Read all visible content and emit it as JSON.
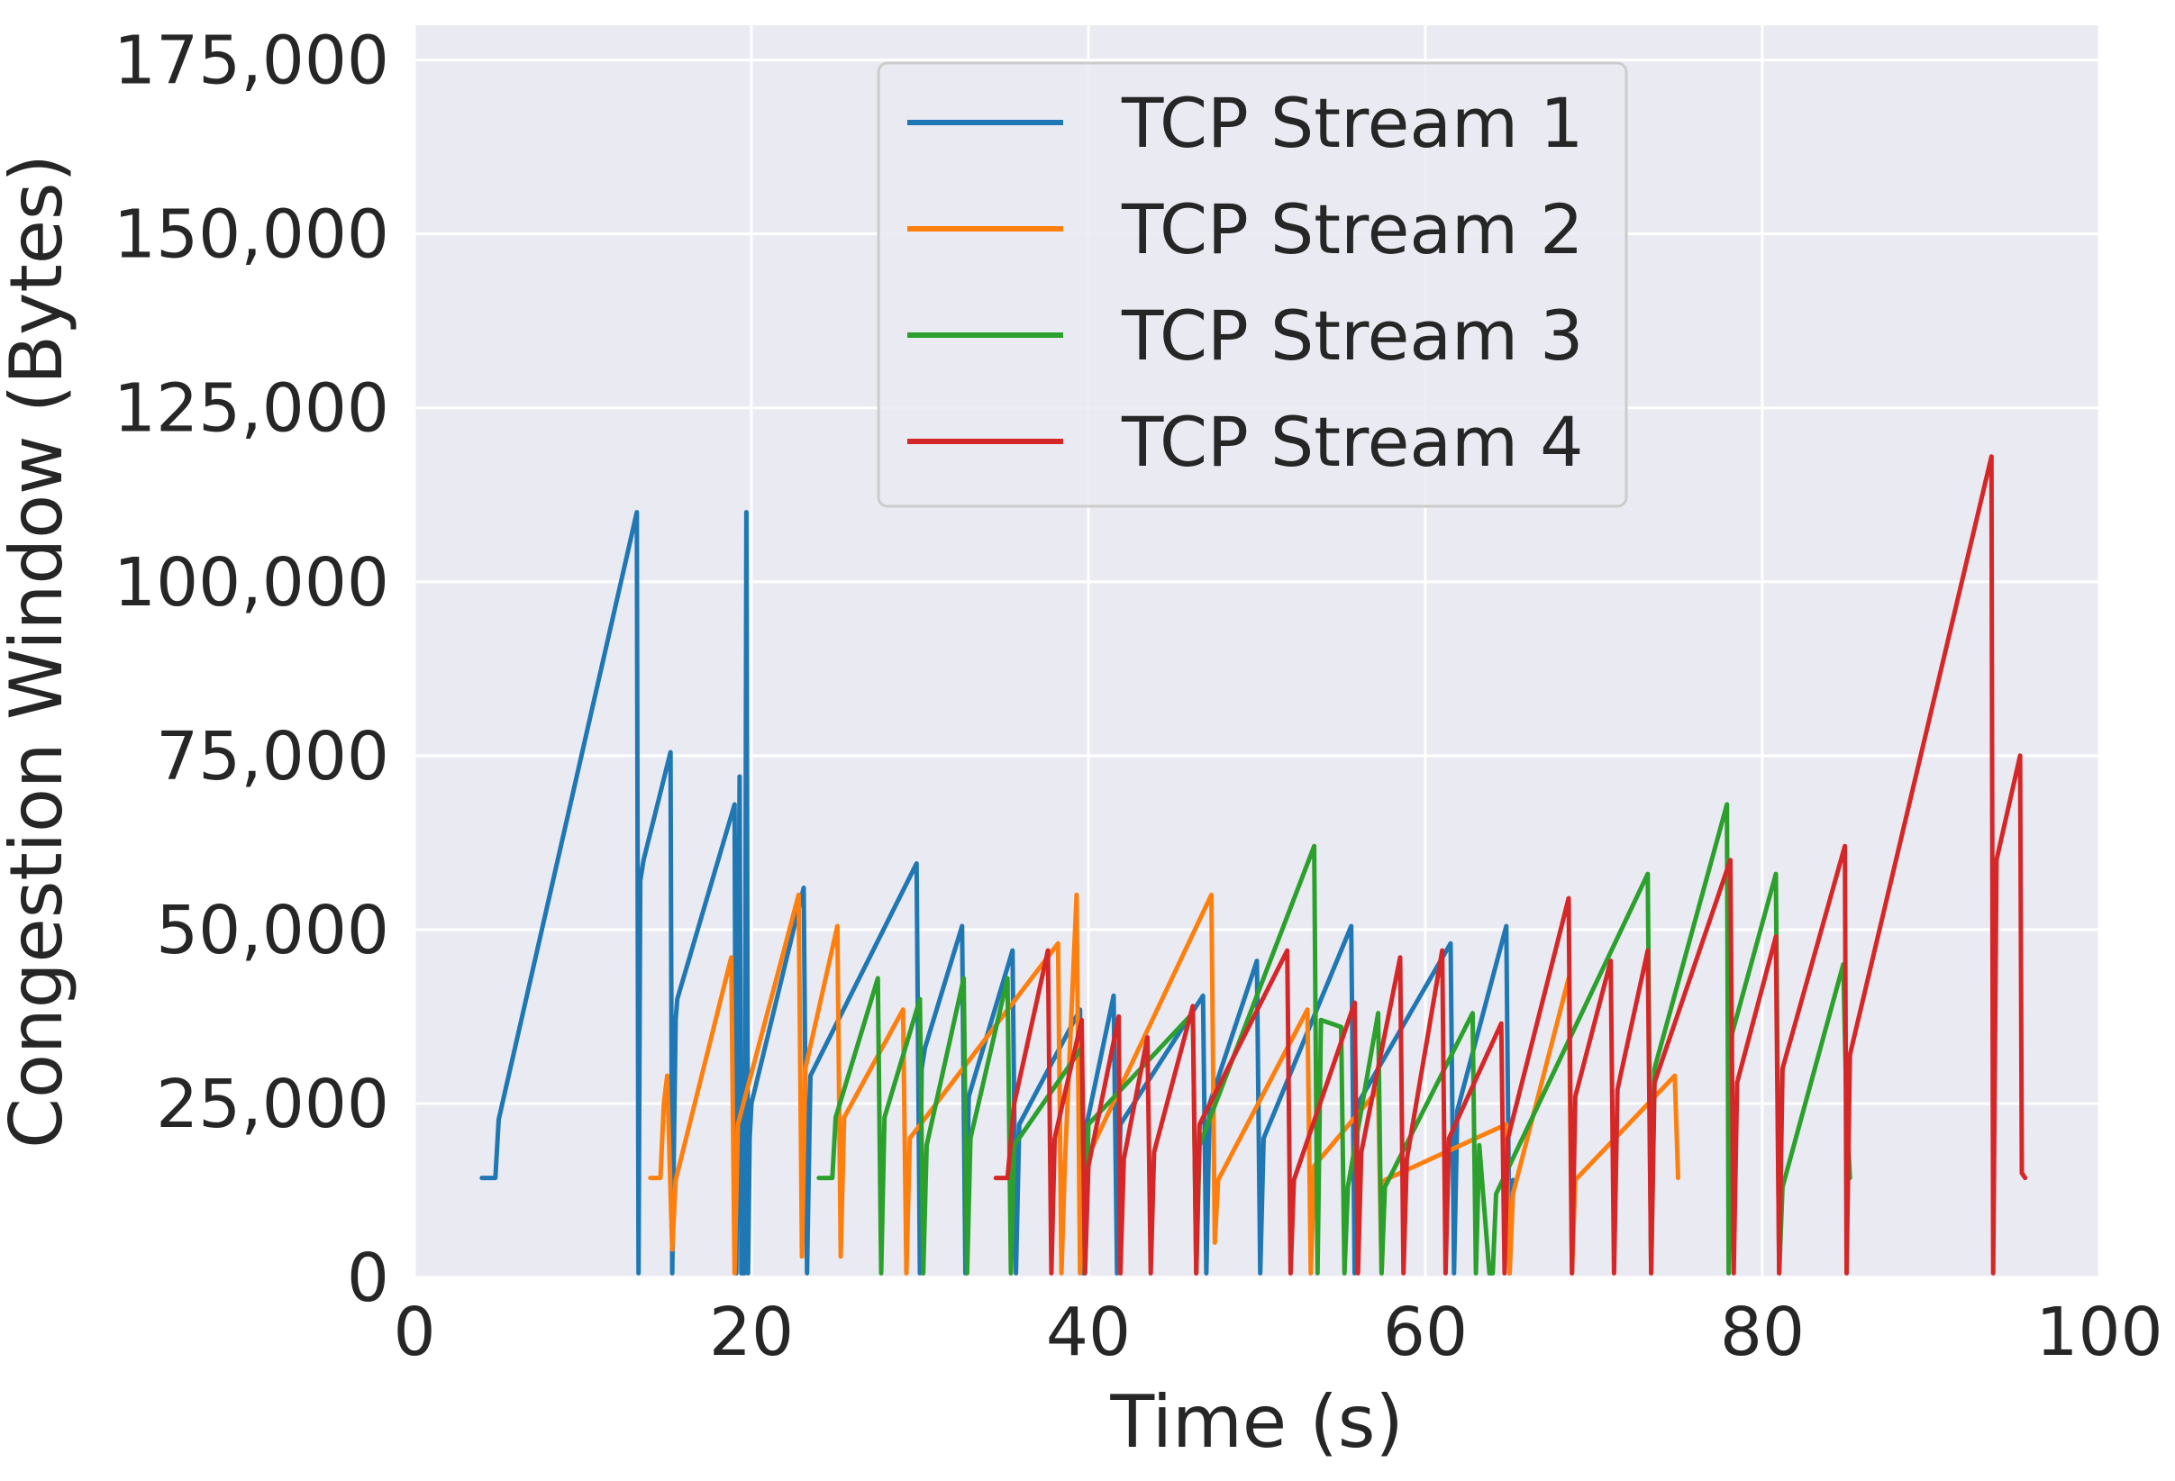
{
  "chart_data": {
    "type": "line",
    "title": "",
    "xlabel": "Time (s)",
    "ylabel": "Congestion Window (Bytes)",
    "xlim": [
      0,
      100
    ],
    "ylim": [
      0,
      180000
    ],
    "x_ticks": [
      0,
      20,
      40,
      60,
      80,
      100
    ],
    "x_tick_labels": [
      "0",
      "20",
      "40",
      "60",
      "80",
      "100"
    ],
    "y_ticks": [
      0,
      25000,
      50000,
      75000,
      100000,
      125000,
      150000,
      175000
    ],
    "y_tick_labels": [
      "0",
      "25,000",
      "50,000",
      "75,000",
      "100,000",
      "125,000",
      "150,000",
      "175,000"
    ],
    "grid": true,
    "background": "#eaeaf2",
    "legend_position": "top-center",
    "series": [
      {
        "name": "TCP Stream 1",
        "color": "#1f77b4",
        "x": [
          4.0,
          4.8,
          5.0,
          13.2,
          13.3,
          13.4,
          13.6,
          15.2,
          15.3,
          15.5,
          15.6,
          19.0,
          19.1,
          19.3,
          19.4,
          19.6,
          19.7,
          19.8,
          19.9,
          20.0,
          23.1,
          23.3,
          23.5,
          29.8,
          30.0,
          30.1,
          30.3,
          32.5,
          32.7,
          32.9,
          35.5,
          35.7,
          35.9,
          39.5,
          39.7,
          39.9,
          41.5,
          41.7,
          41.9,
          46.8,
          47.0,
          47.2,
          50.0,
          50.2,
          50.4,
          55.6,
          55.8,
          56.0,
          61.5,
          61.7,
          61.9,
          64.8,
          65.0,
          65.2
        ],
        "y": [
          14300,
          14300,
          22700,
          110000,
          600,
          57000,
          60000,
          75500,
          600,
          37000,
          40000,
          68000,
          600,
          72000,
          600,
          600,
          110000,
          600,
          20000,
          25000,
          56000,
          600,
          29000,
          59500,
          600,
          30000,
          33000,
          50500,
          600,
          26000,
          47000,
          600,
          22000,
          38500,
          600,
          22000,
          40500,
          600,
          22000,
          40500,
          600,
          25000,
          45500,
          600,
          20000,
          50500,
          600,
          25000,
          48000,
          600,
          24000,
          50500,
          600,
          14000
        ]
      },
      {
        "name": "TCP Stream 2",
        "color": "#ff7f0e",
        "x": [
          14.0,
          14.6,
          14.8,
          15.0,
          15.3,
          15.5,
          18.8,
          19.0,
          19.2,
          22.8,
          23.0,
          23.2,
          25.1,
          25.3,
          25.5,
          29.0,
          29.2,
          29.4,
          38.2,
          38.4,
          38.6,
          39.3,
          39.5,
          39.7,
          47.3,
          47.5,
          47.7,
          53.0,
          53.2,
          53.4,
          57.2,
          57.4,
          57.6,
          64.8,
          65.0,
          65.2,
          68.5,
          68.7,
          68.9,
          74.8,
          75.0
        ],
        "y": [
          14300,
          14300,
          25000,
          29000,
          4000,
          14000,
          46000,
          600,
          22000,
          55000,
          3000,
          30000,
          50500,
          3000,
          23000,
          38500,
          600,
          20000,
          48000,
          600,
          16000,
          55000,
          600,
          16000,
          55000,
          5000,
          14000,
          38500,
          600,
          16000,
          27000,
          600,
          14000,
          22000,
          600,
          12000,
          43000,
          600,
          14000,
          29000,
          14300
        ]
      },
      {
        "name": "TCP Stream 3",
        "color": "#2ca02c",
        "x": [
          24.0,
          24.8,
          25.0,
          27.5,
          27.7,
          27.9,
          30.0,
          30.2,
          30.4,
          32.6,
          32.8,
          33.0,
          35.2,
          35.4,
          35.6,
          39.6,
          39.8,
          40.0,
          46.2,
          46.4,
          46.6,
          53.4,
          53.6,
          53.8,
          55.0,
          55.2,
          55.4,
          57.2,
          57.4,
          57.6,
          62.8,
          63.0,
          63.2,
          63.8,
          64.0,
          64.2,
          73.2,
          73.4,
          73.6,
          77.9,
          78.0,
          78.2,
          80.8,
          81.0,
          81.2,
          84.8,
          85.0,
          85.2
        ],
        "y": [
          14300,
          14300,
          23000,
          43000,
          600,
          23000,
          40000,
          600,
          19000,
          43000,
          600,
          20000,
          43000,
          600,
          19000,
          33000,
          600,
          22000,
          38000,
          600,
          19000,
          62000,
          600,
          37000,
          36000,
          600,
          13000,
          38000,
          600,
          13000,
          38000,
          600,
          19000,
          600,
          600,
          12000,
          58000,
          600,
          30000,
          68000,
          600,
          35000,
          58000,
          600,
          13000,
          45000,
          24000,
          14300
        ]
      },
      {
        "name": "TCP Stream 4",
        "color": "#d62728",
        "x": [
          34.5,
          35.2,
          35.6,
          37.6,
          37.8,
          38.0,
          39.6,
          39.8,
          40.0,
          41.8,
          41.9,
          42.1,
          43.5,
          43.7,
          43.9,
          46.2,
          46.4,
          46.6,
          51.8,
          52.0,
          52.2,
          55.8,
          56.0,
          56.2,
          58.5,
          58.7,
          58.9,
          61.0,
          61.2,
          61.4,
          64.5,
          64.7,
          64.9,
          68.5,
          68.7,
          68.9,
          71.0,
          71.2,
          71.4,
          73.2,
          73.4,
          73.6,
          78.1,
          78.3,
          78.5,
          80.8,
          81.0,
          81.2,
          84.9,
          85.0,
          85.2,
          93.6,
          93.7,
          93.9,
          95.3,
          95.4,
          95.6
        ],
        "y": [
          14300,
          14300,
          25000,
          47000,
          600,
          20000,
          37000,
          600,
          16000,
          37500,
          600,
          17000,
          34500,
          600,
          18000,
          39000,
          600,
          22000,
          47000,
          600,
          14000,
          39500,
          600,
          18000,
          46000,
          600,
          17000,
          47000,
          600,
          20000,
          36500,
          600,
          20000,
          54500,
          600,
          26000,
          45500,
          600,
          27000,
          47000,
          600,
          28000,
          60000,
          600,
          28000,
          49000,
          600,
          30000,
          62000,
          600,
          32000,
          118000,
          600,
          60000,
          75000,
          15000,
          14300
        ]
      }
    ]
  }
}
